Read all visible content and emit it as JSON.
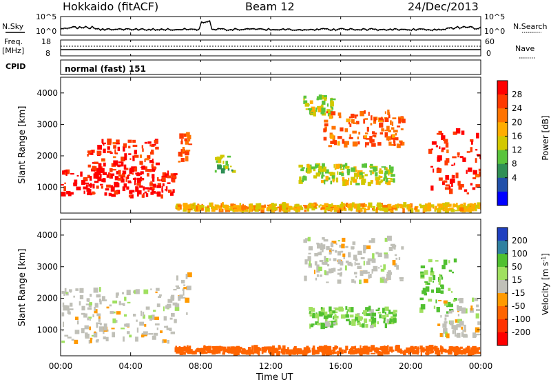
{
  "header": {
    "station": "Hokkaido (fitACF)",
    "beam": "Beam 12",
    "date": "24/Dec/2013"
  },
  "noise_panel": {
    "left_label": "N.Sky",
    "right_label": "N.Search",
    "left_ticks": [
      "10^5",
      "10^0"
    ],
    "right_ticks": [
      "10^5",
      "10^0"
    ]
  },
  "freq_panel": {
    "left_label_1": "Freq.",
    "left_label_2": "[MHz]",
    "right_label": "Nave",
    "left_ticks": [
      "18",
      "8"
    ],
    "right_ticks": [
      "60",
      "0"
    ]
  },
  "cpid_panel": {
    "label": "CPID",
    "value": "normal (fast) 151"
  },
  "x_axis": {
    "label": "Time UT",
    "ticks": [
      "00:00",
      "04:00",
      "08:00",
      "12:00",
      "16:00",
      "20:00",
      "00:00"
    ]
  },
  "power_panel": {
    "ylabel": "Slant Range [km]",
    "y_ticks": [
      "1000",
      "2000",
      "3000",
      "4000"
    ],
    "colorbar_label": "Power [dB]",
    "colorbar_ticks": [
      "28",
      "24",
      "20",
      "16",
      "12",
      "8",
      "4"
    ],
    "colors": [
      "#ff0000",
      "#ff3a00",
      "#ff7300",
      "#ffad00",
      "#d2c800",
      "#5ac43c",
      "#2f8f55",
      "#2150aa",
      "#0000ff"
    ]
  },
  "velocity_panel": {
    "ylabel": "Slant Range [km]",
    "y_ticks": [
      "1000",
      "2000",
      "3000",
      "4000"
    ],
    "colorbar_label_main": "Velocity [m s",
    "colorbar_label_sup": "-1",
    "colorbar_label_end": "]",
    "colorbar_ticks": [
      "200",
      "100",
      "50",
      "15",
      "-15",
      "-50",
      "-100",
      "-200"
    ],
    "colors": [
      "#2040c0",
      "#3080a0",
      "#50c030",
      "#a0e060",
      "#c0c0b8",
      "#ff9a00",
      "#ff6400",
      "#ff3200",
      "#ff0000"
    ]
  },
  "chart_data": [
    {
      "type": "heatmap",
      "title": "Power",
      "ylabel": "Slant Range [km]",
      "xlabel": "Time UT",
      "x_range": [
        "00:00",
        "24:00"
      ],
      "ylim": [
        180,
        4500
      ],
      "color_range_db": [
        0,
        30
      ],
      "regions": [
        {
          "t_start": 0.0,
          "t_end": 6.5,
          "range_start": 700,
          "range_end": 1500,
          "value_db": 30
        },
        {
          "t_start": 1.5,
          "t_end": 5.5,
          "range_start": 1500,
          "range_end": 2500,
          "value_db": 28
        },
        {
          "t_start": 6.5,
          "t_end": 7.3,
          "range_start": 1800,
          "range_end": 2800,
          "value_db": 24
        },
        {
          "t_start": 8.8,
          "t_end": 9.8,
          "range_start": 1500,
          "range_end": 2000,
          "value_db": 12
        },
        {
          "t_start": 13.8,
          "t_end": 15.5,
          "range_start": 3300,
          "range_end": 3900,
          "value_db": 14
        },
        {
          "t_start": 15.0,
          "t_end": 19.5,
          "range_start": 2300,
          "range_end": 3400,
          "value_db": 24
        },
        {
          "t_start": 13.5,
          "t_end": 19.0,
          "range_start": 1100,
          "range_end": 1700,
          "value_db": 14
        },
        {
          "t_start": 21.0,
          "t_end": 24.0,
          "range_start": 800,
          "range_end": 2800,
          "value_db": 28
        },
        {
          "t_start": 6.5,
          "t_end": 24.0,
          "range_start": 250,
          "range_end": 450,
          "value_db": 18
        }
      ]
    },
    {
      "type": "heatmap",
      "title": "Velocity",
      "ylabel": "Slant Range [km]",
      "xlabel": "Time UT",
      "x_range": [
        "00:00",
        "24:00"
      ],
      "ylim": [
        180,
        4500
      ],
      "color_range_ms": [
        -200,
        200
      ],
      "regions": [
        {
          "t_start": 0.0,
          "t_end": 6.5,
          "range_start": 600,
          "range_end": 2300,
          "value_ms": 0
        },
        {
          "t_start": 6.5,
          "t_end": 7.3,
          "range_start": 1500,
          "range_end": 2800,
          "value_ms": 0
        },
        {
          "t_start": 13.8,
          "t_end": 19.5,
          "range_start": 2500,
          "range_end": 3900,
          "value_ms": 0
        },
        {
          "t_start": 14.0,
          "t_end": 19.0,
          "range_start": 1100,
          "range_end": 1700,
          "value_ms": 30
        },
        {
          "t_start": 20.5,
          "t_end": 22.5,
          "range_start": 1500,
          "range_end": 3200,
          "value_ms": 40
        },
        {
          "t_start": 21.5,
          "t_end": 24.0,
          "range_start": 800,
          "range_end": 2000,
          "value_ms": 0
        },
        {
          "t_start": 6.5,
          "t_end": 24.0,
          "range_start": 250,
          "range_end": 450,
          "value_ms": -80
        }
      ]
    }
  ]
}
